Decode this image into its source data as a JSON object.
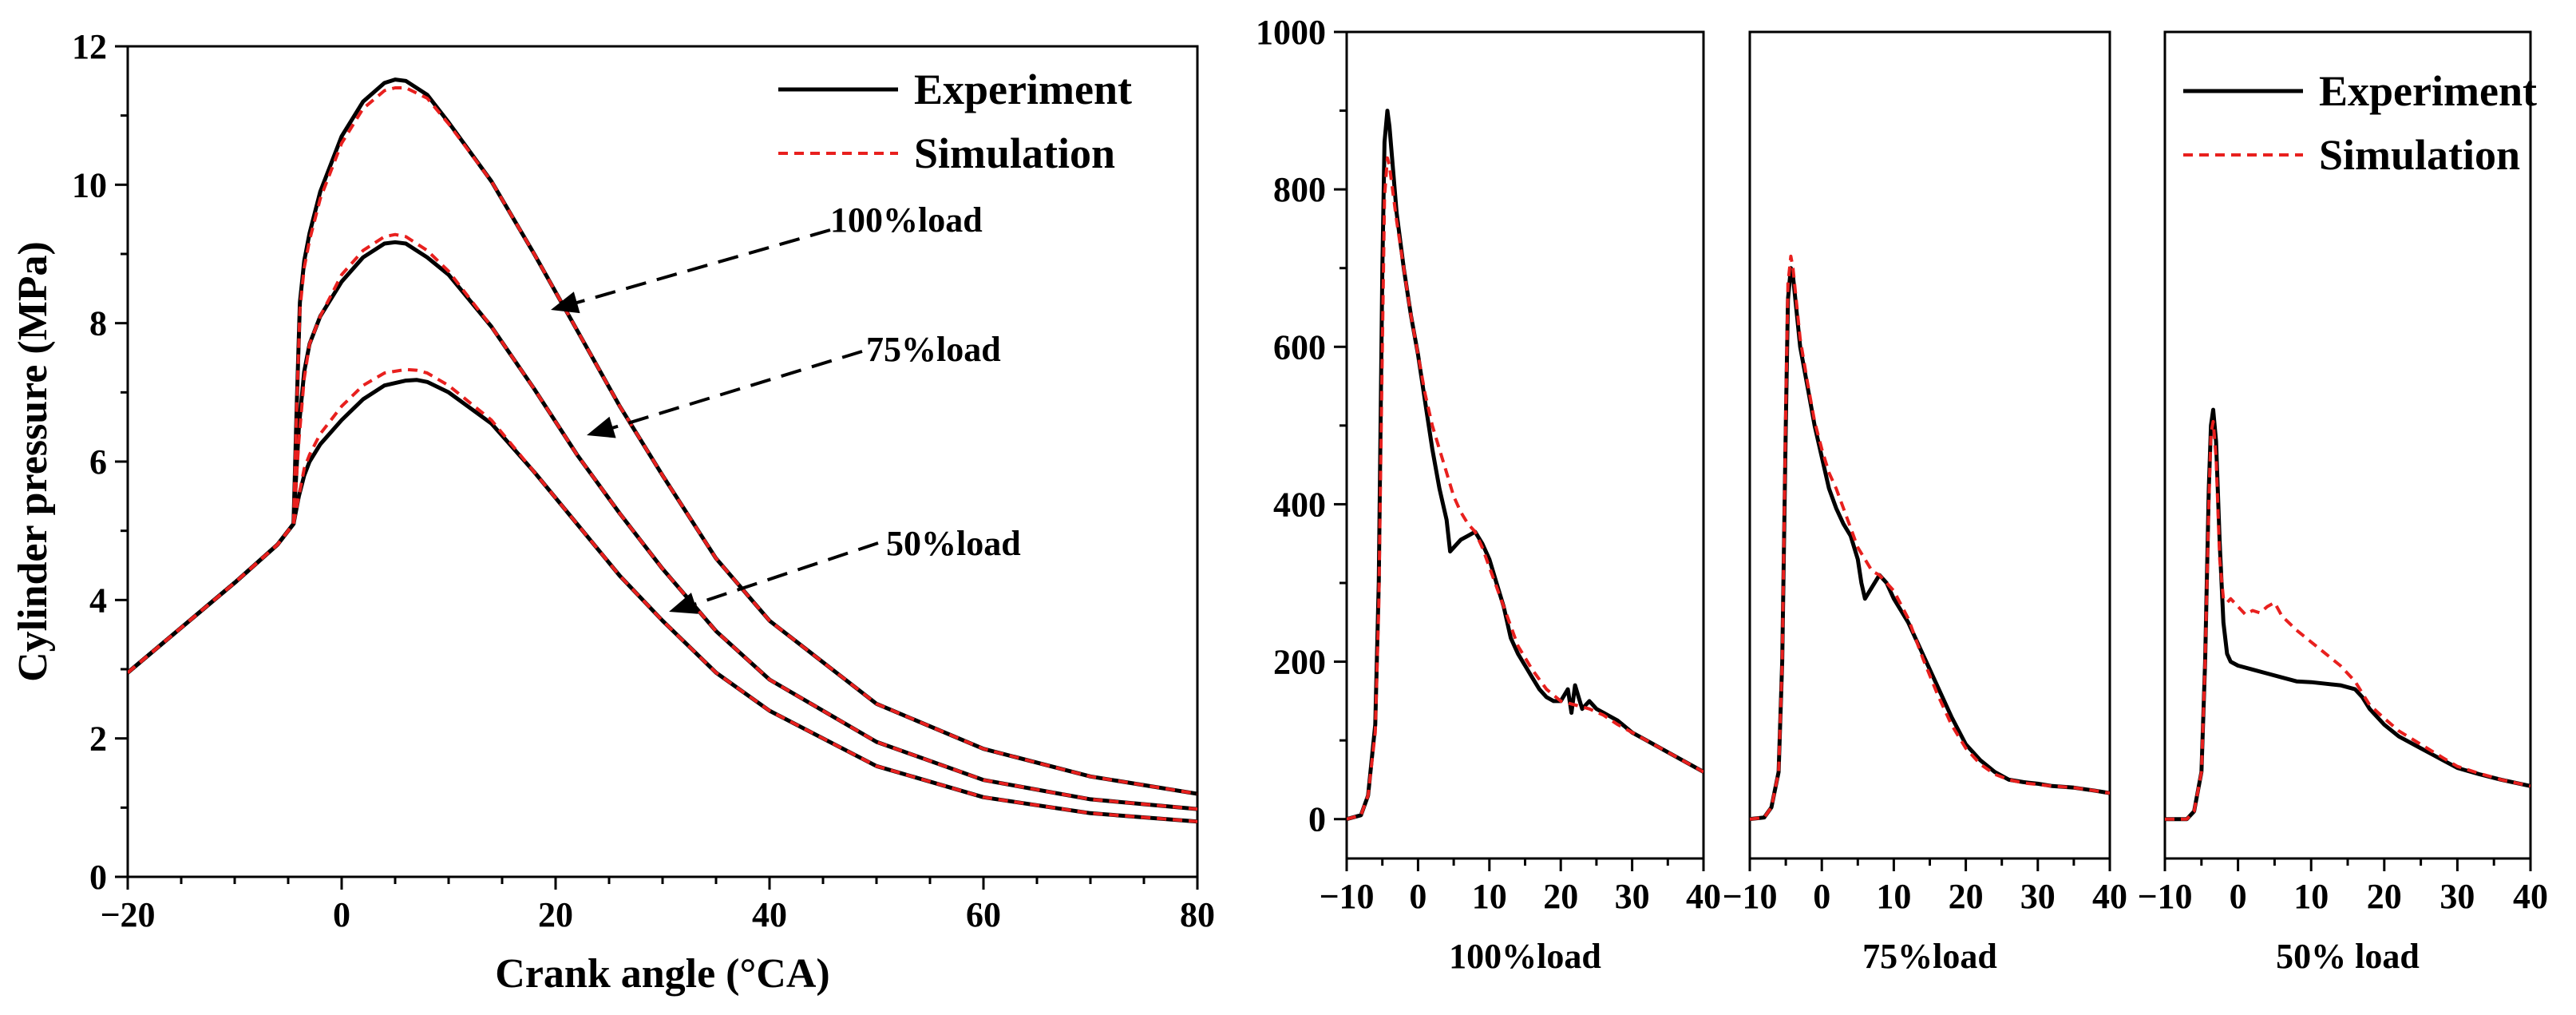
{
  "chart_data": [
    {
      "type": "line",
      "title": "",
      "xlabel": "Crank angle (°CA)",
      "ylabel": "Cylinder pressure (MPa)",
      "xlim": [
        -20,
        80
      ],
      "ylim": [
        0,
        12
      ],
      "xticks": [
        -20,
        0,
        20,
        40,
        60,
        80
      ],
      "yticks": [
        0,
        2,
        4,
        6,
        8,
        10,
        12
      ],
      "tick_labels_x": [
        "−20",
        "0",
        "20",
        "40",
        "60",
        "80"
      ],
      "tick_labels_y": [
        "0",
        "2",
        "4",
        "6",
        "8",
        "10",
        "12"
      ],
      "legend": {
        "position": "top-right",
        "entries": [
          {
            "label": "Experiment",
            "color": "#000000",
            "style": "solid"
          },
          {
            "label": "Simulation",
            "color": "#e8201e",
            "style": "dashed"
          }
        ]
      },
      "annotations": [
        "100%load",
        "75%load",
        "50%load"
      ],
      "series": [
        {
          "name": "Experiment 100%load",
          "color": "#000000",
          "style": "solid",
          "x": [
            -20,
            -15,
            -10,
            -6,
            -4.5,
            -4.2,
            -3.9,
            -3.5,
            -3,
            -2,
            0,
            2,
            4,
            5,
            6,
            8,
            10,
            14,
            18,
            22,
            26,
            30,
            35,
            40,
            50,
            60,
            70,
            80
          ],
          "y": [
            2.95,
            3.6,
            4.25,
            4.8,
            5.1,
            6.8,
            8.3,
            8.9,
            9.3,
            9.9,
            10.7,
            11.2,
            11.47,
            11.52,
            11.5,
            11.3,
            10.9,
            10.05,
            9.0,
            7.9,
            6.8,
            5.8,
            4.6,
            3.7,
            2.5,
            1.85,
            1.45,
            1.2
          ]
        },
        {
          "name": "Simulation 100%load",
          "color": "#e8201e",
          "style": "dashed",
          "x": [
            -20,
            -15,
            -10,
            -6,
            -4.5,
            -4.2,
            -3.9,
            -3.5,
            -3,
            -2,
            0,
            2,
            4,
            5,
            6,
            8,
            10,
            14,
            18,
            22,
            26,
            30,
            35,
            40,
            50,
            60,
            70,
            80
          ],
          "y": [
            2.95,
            3.6,
            4.25,
            4.8,
            5.1,
            6.8,
            8.2,
            8.8,
            9.2,
            9.8,
            10.6,
            11.1,
            11.36,
            11.4,
            11.4,
            11.25,
            10.88,
            10.05,
            9.0,
            7.9,
            6.8,
            5.8,
            4.6,
            3.7,
            2.5,
            1.85,
            1.45,
            1.2
          ]
        },
        {
          "name": "Experiment 75%load",
          "color": "#000000",
          "style": "solid",
          "x": [
            -20,
            -15,
            -10,
            -6,
            -4.5,
            -4,
            -3.5,
            -3,
            -2,
            0,
            2,
            4,
            5,
            6,
            8,
            10,
            14,
            18,
            22,
            26,
            30,
            35,
            40,
            50,
            60,
            70,
            80
          ],
          "y": [
            2.95,
            3.6,
            4.25,
            4.8,
            5.1,
            6.5,
            7.3,
            7.7,
            8.1,
            8.6,
            8.95,
            9.15,
            9.17,
            9.15,
            8.95,
            8.7,
            7.95,
            7.05,
            6.1,
            5.25,
            4.45,
            3.55,
            2.85,
            1.95,
            1.4,
            1.12,
            0.98
          ]
        },
        {
          "name": "Simulation 75%load",
          "color": "#e8201e",
          "style": "dashed",
          "x": [
            -20,
            -15,
            -10,
            -6,
            -4.5,
            -4,
            -3.5,
            -3,
            -2,
            0,
            2,
            4,
            5,
            6,
            8,
            10,
            14,
            18,
            22,
            26,
            30,
            35,
            40,
            50,
            60,
            70,
            80
          ],
          "y": [
            2.95,
            3.6,
            4.25,
            4.8,
            5.1,
            6.3,
            7.2,
            7.7,
            8.1,
            8.7,
            9.05,
            9.25,
            9.28,
            9.25,
            9.05,
            8.75,
            7.95,
            7.05,
            6.1,
            5.25,
            4.45,
            3.55,
            2.85,
            1.95,
            1.4,
            1.12,
            0.98
          ]
        },
        {
          "name": "Experiment 50%load",
          "color": "#000000",
          "style": "solid",
          "x": [
            -20,
            -15,
            -10,
            -6,
            -4.5,
            -4,
            -3.5,
            -3,
            -2,
            0,
            2,
            4,
            6,
            7,
            8,
            10,
            14,
            18,
            22,
            26,
            30,
            35,
            40,
            50,
            60,
            70,
            80
          ],
          "y": [
            2.95,
            3.6,
            4.25,
            4.8,
            5.1,
            5.5,
            5.8,
            6.0,
            6.25,
            6.6,
            6.9,
            7.1,
            7.17,
            7.18,
            7.15,
            7.0,
            6.55,
            5.85,
            5.1,
            4.35,
            3.7,
            2.95,
            2.4,
            1.6,
            1.15,
            0.92,
            0.8
          ]
        },
        {
          "name": "Simulation 50%load",
          "color": "#e8201e",
          "style": "dashed",
          "x": [
            -20,
            -15,
            -10,
            -6,
            -4.5,
            -4,
            -3.5,
            -3,
            -2,
            0,
            2,
            4,
            6,
            7,
            8,
            10,
            14,
            18,
            22,
            26,
            30,
            35,
            40,
            50,
            60,
            70,
            80
          ],
          "y": [
            2.95,
            3.6,
            4.25,
            4.8,
            5.1,
            5.5,
            5.9,
            6.1,
            6.4,
            6.8,
            7.1,
            7.28,
            7.33,
            7.32,
            7.28,
            7.1,
            6.6,
            5.85,
            5.1,
            4.35,
            3.7,
            2.95,
            2.4,
            1.6,
            1.15,
            0.92,
            0.8
          ]
        }
      ]
    },
    {
      "type": "line",
      "title": "",
      "xlabel": "100%load",
      "ylabel": "",
      "xlim": [
        -10,
        40
      ],
      "ylim": [
        -50,
        1000
      ],
      "xticks": [
        -10,
        0,
        10,
        20,
        30,
        40
      ],
      "yticks": [
        0,
        200,
        400,
        600,
        800,
        1000
      ],
      "tick_labels_x": [
        "−10",
        "0",
        "10",
        "20",
        "30",
        "40"
      ],
      "tick_labels_y": [
        "0",
        "200",
        "400",
        "600",
        "800",
        "1000"
      ],
      "series": [
        {
          "name": "Experiment",
          "color": "#000000",
          "style": "solid",
          "x": [
            -10,
            -8,
            -7,
            -6,
            -5.5,
            -5,
            -4.7,
            -4.3,
            -4,
            -3,
            -2,
            -1,
            0,
            1,
            2,
            3,
            4,
            4.5,
            5,
            6,
            7,
            8,
            9,
            10,
            11,
            12,
            13,
            14,
            15,
            16,
            17,
            18,
            19,
            20,
            21,
            21.5,
            22,
            23,
            24,
            25,
            26,
            27,
            28,
            30,
            32,
            35,
            38,
            40
          ],
          "y": [
            0,
            5,
            30,
            120,
            300,
            700,
            860,
            900,
            880,
            770,
            700,
            640,
            590,
            530,
            470,
            420,
            380,
            340,
            345,
            355,
            360,
            365,
            350,
            330,
            300,
            270,
            230,
            210,
            195,
            180,
            165,
            155,
            150,
            150,
            165,
            135,
            170,
            140,
            150,
            140,
            135,
            130,
            125,
            110,
            100,
            85,
            70,
            60
          ]
        },
        {
          "name": "Simulation",
          "color": "#e8201e",
          "style": "dashed",
          "x": [
            -10,
            -8,
            -7,
            -6,
            -5.5,
            -5,
            -4.7,
            -4.3,
            -4,
            -3,
            -2,
            -1,
            0,
            1,
            2,
            3,
            4,
            5,
            6,
            7,
            8,
            9,
            10,
            12,
            14,
            16,
            18,
            20,
            22,
            24,
            26,
            28,
            30,
            32,
            35,
            38,
            40
          ],
          "y": [
            0,
            5,
            30,
            110,
            270,
            600,
            790,
            840,
            830,
            760,
            700,
            640,
            590,
            540,
            500,
            470,
            440,
            410,
            390,
            375,
            365,
            345,
            320,
            270,
            220,
            190,
            165,
            150,
            145,
            140,
            132,
            120,
            110,
            100,
            85,
            70,
            60
          ]
        }
      ]
    },
    {
      "type": "line",
      "title": "",
      "xlabel": "75%load",
      "ylabel": "",
      "xlim": [
        -10,
        40
      ],
      "ylim": [
        -50,
        1000
      ],
      "xticks": [
        -10,
        0,
        10,
        20,
        30,
        40
      ],
      "tick_labels_x": [
        "−10",
        "0",
        "10",
        "20",
        "30",
        "40"
      ],
      "series": [
        {
          "name": "Experiment",
          "color": "#000000",
          "style": "solid",
          "x": [
            -10,
            -8,
            -7,
            -6,
            -5.5,
            -5,
            -4.7,
            -4.3,
            -4,
            -3,
            -2,
            -1,
            0,
            1,
            2,
            3,
            4,
            5,
            5.5,
            6,
            7,
            8,
            9,
            10,
            11,
            12,
            14,
            16,
            18,
            20,
            22,
            24,
            26,
            28,
            30,
            32,
            35,
            38,
            40
          ],
          "y": [
            0,
            2,
            15,
            60,
            200,
            500,
            660,
            700,
            690,
            600,
            550,
            500,
            460,
            420,
            395,
            375,
            360,
            330,
            300,
            280,
            295,
            310,
            300,
            280,
            265,
            250,
            210,
            170,
            130,
            95,
            75,
            60,
            50,
            47,
            45,
            42,
            40,
            36,
            33
          ]
        },
        {
          "name": "Simulation",
          "color": "#e8201e",
          "style": "dashed",
          "x": [
            -10,
            -8,
            -7,
            -6,
            -5.5,
            -5,
            -4.7,
            -4.3,
            -4,
            -3,
            -2,
            -1,
            0,
            1,
            2,
            3,
            4,
            5,
            6,
            7,
            8,
            9,
            10,
            12,
            14,
            16,
            18,
            20,
            22,
            24,
            26,
            28,
            30,
            32,
            35,
            38,
            40
          ],
          "y": [
            0,
            2,
            15,
            60,
            200,
            520,
            680,
            715,
            700,
            610,
            555,
            505,
            470,
            440,
            420,
            395,
            370,
            345,
            330,
            315,
            310,
            300,
            290,
            255,
            205,
            160,
            120,
            90,
            70,
            57,
            50,
            46,
            44,
            42,
            40,
            36,
            33
          ]
        }
      ]
    },
    {
      "type": "line",
      "title": "",
      "xlabel": "50% load",
      "ylabel": "",
      "xlim": [
        -10,
        40
      ],
      "ylim": [
        -50,
        1000
      ],
      "xticks": [
        -10,
        0,
        10,
        20,
        30,
        40
      ],
      "tick_labels_x": [
        "−10",
        "0",
        "10",
        "20",
        "30",
        "40"
      ],
      "legend": {
        "position": "top-right",
        "entries": [
          {
            "label": "Experiment",
            "color": "#000000",
            "style": "solid"
          },
          {
            "label": "Simulation",
            "color": "#e8201e",
            "style": "dashed"
          }
        ]
      },
      "series": [
        {
          "name": "Experiment",
          "color": "#000000",
          "style": "solid",
          "x": [
            -10,
            -7,
            -6,
            -5,
            -4.5,
            -4,
            -3.7,
            -3.4,
            -3,
            -2.5,
            -2,
            -1.5,
            -1,
            0,
            2,
            4,
            6,
            8,
            10,
            12,
            14,
            16,
            17,
            18,
            20,
            22,
            25,
            28,
            30,
            33,
            36,
            40
          ],
          "y": [
            0,
            0,
            10,
            60,
            200,
            420,
            500,
            520,
            480,
            350,
            250,
            210,
            200,
            195,
            190,
            185,
            180,
            175,
            174,
            172,
            170,
            165,
            155,
            140,
            120,
            105,
            90,
            75,
            65,
            57,
            50,
            42
          ]
        },
        {
          "name": "Simulation",
          "color": "#e8201e",
          "style": "dashed",
          "x": [
            -10,
            -7,
            -6,
            -5,
            -4.5,
            -4,
            -3.7,
            -3.4,
            -3,
            -2.5,
            -2,
            -1.5,
            -1,
            0,
            1,
            2,
            3,
            4,
            5,
            6,
            8,
            10,
            12,
            14,
            16,
            17,
            18,
            20,
            22,
            25,
            28,
            30,
            33,
            36,
            40
          ],
          "y": [
            0,
            0,
            10,
            60,
            200,
            400,
            490,
            505,
            460,
            330,
            280,
            275,
            280,
            270,
            260,
            265,
            262,
            270,
            275,
            258,
            240,
            225,
            210,
            195,
            175,
            160,
            145,
            128,
            112,
            95,
            78,
            67,
            58,
            50,
            42
          ]
        }
      ]
    }
  ]
}
